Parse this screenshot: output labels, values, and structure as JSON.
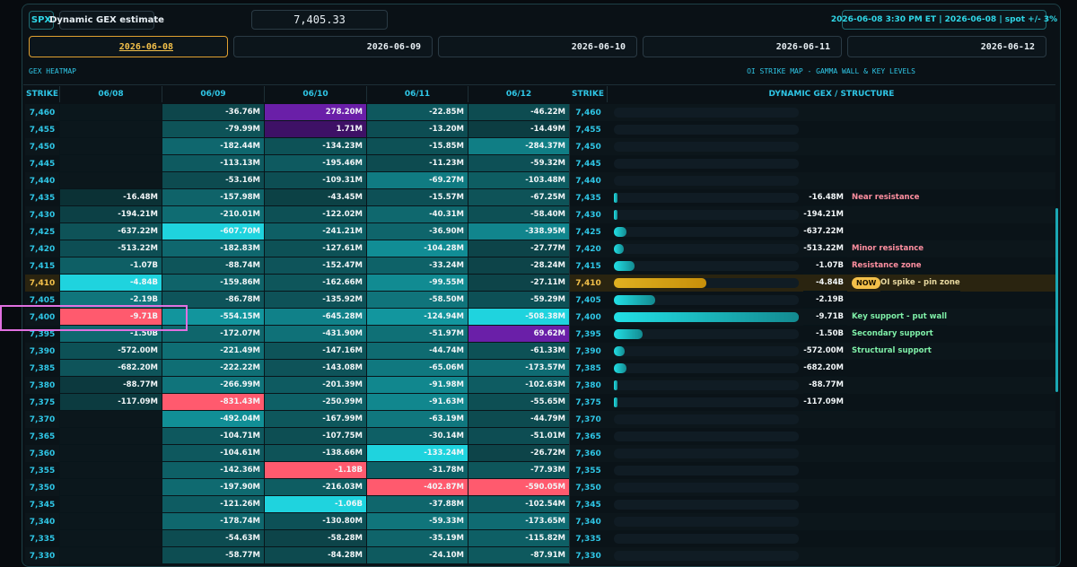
{
  "header": {
    "symbol": "SPX",
    "mode": "Dynamic GEX estimate",
    "spot": "7,405.33",
    "status": "2026-06-08 3:30 PM ET | 2026-06-08 | spot +/- 3%"
  },
  "tabs": {
    "dates": [
      "2026-06-08",
      "2026-06-09",
      "2026-06-10",
      "2026-06-11",
      "2026-06-12"
    ],
    "active": 0
  },
  "sections": {
    "heatmap": "GEX HEATMAP",
    "structure_map": "OI STRIKE MAP - GAMMA WALL & KEY LEVELS"
  },
  "table": {
    "strike_header": "STRIKE",
    "columns": [
      "06/08",
      "06/09",
      "06/10",
      "06/11",
      "06/12"
    ],
    "structure_header": "DYNAMIC GEX / STRUCTURE",
    "rows": [
      {
        "strike": "7,460",
        "cells": [
          null,
          "-36.76M",
          "278.20M",
          "-22.85M",
          "-46.22M"
        ]
      },
      {
        "strike": "7,455",
        "cells": [
          null,
          "-79.99M",
          "1.71M",
          "-13.20M",
          "-14.49M"
        ]
      },
      {
        "strike": "7,450",
        "cells": [
          null,
          "-182.44M",
          "-134.23M",
          "-15.85M",
          "-284.37M"
        ]
      },
      {
        "strike": "7,445",
        "cells": [
          null,
          "-113.13M",
          "-195.46M",
          "-11.23M",
          "-59.32M"
        ]
      },
      {
        "strike": "7,440",
        "cells": [
          null,
          "-53.16M",
          "-109.31M",
          "-69.27M",
          "-103.48M"
        ]
      },
      {
        "strike": "7,435",
        "cells": [
          "-16.48M",
          "-157.98M",
          "-43.45M",
          "-15.57M",
          "-67.25M"
        ],
        "gex": -16.48,
        "gex_label": "-16.48M",
        "note": "Near resistance",
        "note_color": "#ff8fa0"
      },
      {
        "strike": "7,430",
        "cells": [
          "-194.21M",
          "-210.01M",
          "-122.02M",
          "-40.31M",
          "-58.40M"
        ],
        "gex": -194.21,
        "gex_label": "-194.21M"
      },
      {
        "strike": "7,425",
        "cells": [
          "-637.22M",
          "-607.70M",
          "-241.21M",
          "-36.90M",
          "-338.95M"
        ],
        "gex": -637.22,
        "gex_label": "-637.22M"
      },
      {
        "strike": "7,420",
        "cells": [
          "-513.22M",
          "-182.83M",
          "-127.61M",
          "-104.28M",
          "-27.77M"
        ],
        "gex": -513.22,
        "gex_label": "-513.22M",
        "note": "Minor resistance",
        "note_color": "#ff8fa0"
      },
      {
        "strike": "7,415",
        "cells": [
          "-1.07B",
          "-88.74M",
          "-152.47M",
          "-33.24M",
          "-28.24M"
        ],
        "gex": -1070,
        "gex_label": "-1.07B",
        "note": "Resistance zone",
        "note_color": "#ff8fa0"
      },
      {
        "strike": "7,410",
        "cells": [
          "-4.84B",
          "-159.86M",
          "-162.66M",
          "-99.55M",
          "-27.11M"
        ],
        "gex": -4840,
        "gex_label": "-4.84B",
        "note": "OI spike - pin zone",
        "note_color": "#e8d9a0",
        "badge": "NOW",
        "spot": true
      },
      {
        "strike": "7,405",
        "cells": [
          "-2.19B",
          "-86.78M",
          "-135.92M",
          "-58.50M",
          "-59.29M"
        ],
        "gex": -2190,
        "gex_label": "-2.19B"
      },
      {
        "strike": "7,400",
        "cells": [
          "-9.71B",
          "-554.15M",
          "-645.28M",
          "-124.94M",
          "-508.38M"
        ],
        "gex": -9710,
        "gex_label": "-9.71B",
        "note": "Key support - put wall",
        "note_color": "#7ff0a8"
      },
      {
        "strike": "7,395",
        "cells": [
          "-1.50B",
          "-172.07M",
          "-431.90M",
          "-51.97M",
          "69.62M"
        ],
        "gex": -1500,
        "gex_label": "-1.50B",
        "note": "Secondary support",
        "note_color": "#7ff0a8"
      },
      {
        "strike": "7,390",
        "cells": [
          "-572.00M",
          "-221.49M",
          "-147.16M",
          "-44.74M",
          "-61.33M"
        ],
        "gex": -572.0,
        "gex_label": "-572.00M",
        "note": "Structural support",
        "note_color": "#7ff0a8"
      },
      {
        "strike": "7,385",
        "cells": [
          "-682.20M",
          "-222.22M",
          "-143.08M",
          "-65.06M",
          "-173.57M"
        ],
        "gex": -682.2,
        "gex_label": "-682.20M"
      },
      {
        "strike": "7,380",
        "cells": [
          "-88.77M",
          "-266.99M",
          "-201.39M",
          "-91.98M",
          "-102.63M"
        ],
        "gex": -88.77,
        "gex_label": "-88.77M"
      },
      {
        "strike": "7,375",
        "cells": [
          "-117.09M",
          "-831.43M",
          "-250.99M",
          "-91.63M",
          "-55.65M"
        ],
        "gex": -117.09,
        "gex_label": "-117.09M"
      },
      {
        "strike": "7,370",
        "cells": [
          null,
          "-492.04M",
          "-167.99M",
          "-63.19M",
          "-44.79M"
        ]
      },
      {
        "strike": "7,365",
        "cells": [
          null,
          "-104.71M",
          "-107.75M",
          "-30.14M",
          "-51.01M"
        ]
      },
      {
        "strike": "7,360",
        "cells": [
          null,
          "-104.61M",
          "-138.66M",
          "-133.24M",
          "-26.72M"
        ]
      },
      {
        "strike": "7,355",
        "cells": [
          null,
          "-142.36M",
          "-1.18B",
          "-31.78M",
          "-77.93M"
        ]
      },
      {
        "strike": "7,350",
        "cells": [
          null,
          "-197.90M",
          "-216.03M",
          "-402.87M",
          "-590.05M"
        ]
      },
      {
        "strike": "7,345",
        "cells": [
          null,
          "-121.26M",
          "-1.06B",
          "-37.88M",
          "-102.54M"
        ]
      },
      {
        "strike": "7,340",
        "cells": [
          null,
          "-178.74M",
          "-130.80M",
          "-59.33M",
          "-173.65M"
        ]
      },
      {
        "strike": "7,335",
        "cells": [
          null,
          "-54.63M",
          "-58.28M",
          "-35.19M",
          "-115.82M"
        ]
      },
      {
        "strike": "7,330",
        "cells": [
          null,
          "-58.77M",
          "-84.28M",
          "-24.10M",
          "-87.91M"
        ]
      }
    ]
  }
}
